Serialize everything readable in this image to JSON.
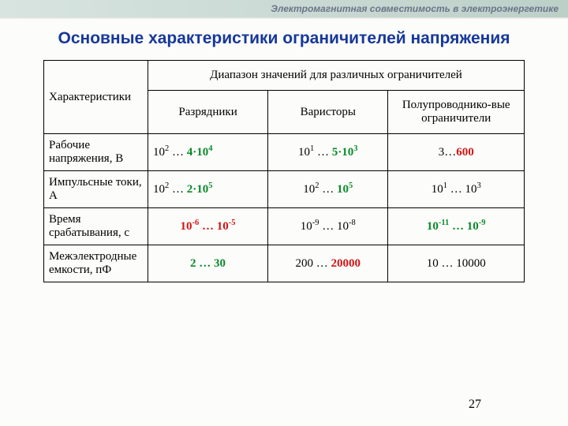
{
  "header": {
    "text": "Электромагнитная совместимость в электроэнергетике"
  },
  "title": "Основные характеристики ограничителей напряжения",
  "table": {
    "rowHeaderTitle": "Характеристики",
    "groupHeader": "Диапазон значений для различных ограничителей",
    "subHeaders": [
      "Разрядники",
      "Варисторы",
      "Полупроводнико-вые ограничители"
    ],
    "rows": [
      {
        "label": "Рабочие напряжения, В",
        "c1": "10<sup>2</sup> … <span class='green'>4·10<sup>4</sup></span>",
        "c1Align": "left",
        "c2": "10<sup>1</sup> … <span class='green'>5·10<sup>3</sup></span>",
        "c3": "3…<span class='red'>600</span>"
      },
      {
        "label": "Импульсные токи, А",
        "c1": "10<sup>2</sup> … <span class='green'>2·10<sup>5</sup></span>",
        "c1Align": "left",
        "c2": "10<sup>2</sup> … <span class='green'>10<sup>5</sup></span>",
        "c3": "10<sup>1</sup> … 10<sup>3</sup>"
      },
      {
        "label": "Время срабатывания, с",
        "c1": "<span class='red'>10<sup>-6</sup> … 10<sup>-5</sup></span>",
        "c1Align": "center",
        "c2": "10<sup>-9</sup> … 10<sup>-8</sup>",
        "c3": "<span class='green'>10<sup>-11</sup> … 10<sup>-9</sup></span>"
      },
      {
        "label": "Межэлектродные   емкости, пФ",
        "c1": "<span class='green'>2 … 30</span>",
        "c1Align": "center",
        "c2": "200 … <span class='red'>20000</span>",
        "c3": "10 … 10000"
      }
    ]
  },
  "pageNumber": "27",
  "colors": {
    "titleColor": "#17389a",
    "green": "#0a8a2a",
    "red": "#d11515",
    "headerBarText": "#6a748a"
  }
}
